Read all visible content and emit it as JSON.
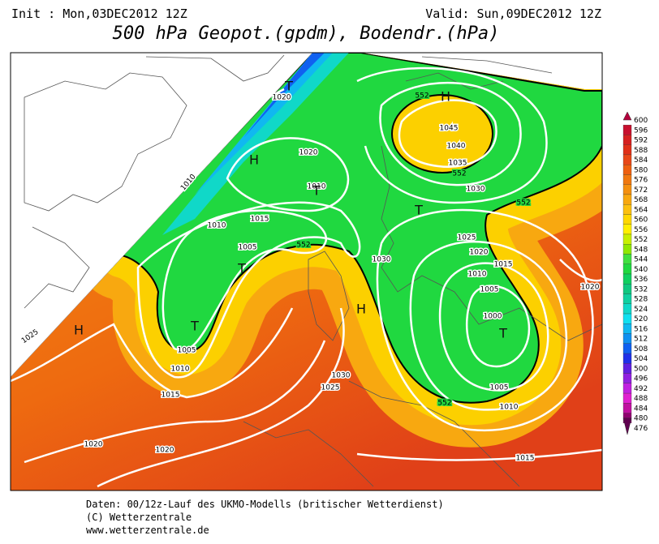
{
  "header": {
    "init": "Init : Mon,03DEC2012 12Z",
    "valid": "Valid: Sun,09DEC2012 12Z",
    "title": "500 hPa Geopot.(gpdm), Bodendr.(hPa)"
  },
  "legend": {
    "levels": [
      600,
      596,
      592,
      588,
      584,
      580,
      576,
      572,
      568,
      564,
      560,
      556,
      552,
      548,
      544,
      540,
      536,
      532,
      528,
      524,
      520,
      516,
      512,
      508,
      504,
      500,
      496,
      492,
      488,
      484,
      480,
      476
    ],
    "colors": [
      "#b4003c",
      "#c8102e",
      "#d62020",
      "#e03018",
      "#e84818",
      "#ee6010",
      "#f07810",
      "#f49010",
      "#f8a810",
      "#fcc010",
      "#ffd800",
      "#fff000",
      "#c8f000",
      "#90e800",
      "#40e040",
      "#20d840",
      "#10d060",
      "#10c880",
      "#10d0a0",
      "#10d8c8",
      "#10e0f0",
      "#10b8f0",
      "#1090f0",
      "#1060f0",
      "#2030e8",
      "#6020e0",
      "#9020e0",
      "#c020e0",
      "#e020d0",
      "#c010a0",
      "#900070",
      "#600050"
    ]
  },
  "map": {
    "pressure_labels": [
      "1020",
      "1010",
      "1020",
      "1010",
      "1015",
      "1010",
      "1005",
      "1005",
      "1010",
      "1015",
      "1025",
      "1020",
      "1020",
      "1030",
      "1025",
      "1030",
      "1045",
      "1040",
      "1035",
      "1030",
      "1025",
      "1020",
      "1015",
      "1010",
      "1005",
      "1000",
      "1005",
      "1010",
      "1015",
      "1020"
    ],
    "geopot_labels": [
      "552",
      "552",
      "552",
      "552",
      "552"
    ],
    "centers": [
      "T",
      "H",
      "T",
      "T",
      "T",
      "H",
      "H",
      "T",
      "H",
      "T"
    ]
  },
  "footer": {
    "line1": "Daten: 00/12z-Lauf des UKMO-Modells (britischer Wetterdienst)",
    "line2": "(C) Wetterzentrale",
    "line3": "www.wetterzentrale.de"
  }
}
